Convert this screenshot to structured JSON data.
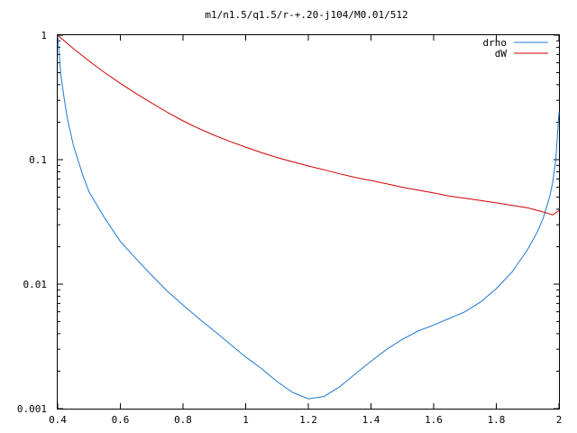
{
  "chart_data": {
    "type": "line",
    "title": "m1/n1.5/q1.5/r-+.20-j104/M0.01/512",
    "xlabel": "",
    "ylabel": "",
    "xlim": [
      0.4,
      2.0
    ],
    "ylim": [
      0.001,
      1
    ],
    "yscale": "log",
    "grid": false,
    "legend_position": "top-right",
    "x_ticks": [
      {
        "value": 0.4,
        "label": "0.4"
      },
      {
        "value": 0.6,
        "label": "0.6"
      },
      {
        "value": 0.8,
        "label": "0.8"
      },
      {
        "value": 1.0,
        "label": "1"
      },
      {
        "value": 1.2,
        "label": "1.2"
      },
      {
        "value": 1.4,
        "label": "1.4"
      },
      {
        "value": 1.6,
        "label": "1.6"
      },
      {
        "value": 1.8,
        "label": "1.8"
      },
      {
        "value": 2.0,
        "label": "2"
      }
    ],
    "y_ticks": [
      {
        "value": 1,
        "label": "1"
      },
      {
        "value": 0.1,
        "label": "0.1"
      },
      {
        "value": 0.01,
        "label": "0.01"
      },
      {
        "value": 0.001,
        "label": "0.001"
      }
    ],
    "series": [
      {
        "name": "drho",
        "color": "#1f77d2",
        "x": [
          0.4,
          0.41,
          0.42,
          0.43,
          0.45,
          0.48,
          0.5,
          0.55,
          0.6,
          0.65,
          0.7,
          0.75,
          0.8,
          0.85,
          0.9,
          0.95,
          1.0,
          1.05,
          1.1,
          1.15,
          1.2,
          1.25,
          1.3,
          1.35,
          1.4,
          1.45,
          1.5,
          1.55,
          1.6,
          1.65,
          1.7,
          1.75,
          1.8,
          1.85,
          1.9,
          1.93,
          1.95,
          1.97,
          1.98,
          1.99,
          2.0
        ],
        "y": [
          1.0,
          0.48,
          0.32,
          0.22,
          0.13,
          0.075,
          0.055,
          0.034,
          0.022,
          0.016,
          0.0118,
          0.0088,
          0.0068,
          0.0053,
          0.0042,
          0.0033,
          0.0026,
          0.0021,
          0.00165,
          0.00135,
          0.0012,
          0.00125,
          0.0015,
          0.0019,
          0.0024,
          0.003,
          0.0036,
          0.0042,
          0.0047,
          0.0053,
          0.006,
          0.0072,
          0.0092,
          0.0125,
          0.019,
          0.026,
          0.034,
          0.05,
          0.066,
          0.1,
          0.24
        ]
      },
      {
        "name": "dW",
        "color": "#d00000",
        "x": [
          0.4,
          0.45,
          0.5,
          0.55,
          0.6,
          0.65,
          0.7,
          0.75,
          0.8,
          0.85,
          0.9,
          0.95,
          1.0,
          1.05,
          1.1,
          1.15,
          1.2,
          1.25,
          1.3,
          1.35,
          1.4,
          1.45,
          1.5,
          1.55,
          1.6,
          1.65,
          1.7,
          1.75,
          1.8,
          1.85,
          1.9,
          1.95,
          1.98,
          2.0
        ],
        "y": [
          1.0,
          0.78,
          0.62,
          0.5,
          0.41,
          0.34,
          0.285,
          0.24,
          0.205,
          0.178,
          0.157,
          0.14,
          0.126,
          0.114,
          0.104,
          0.096,
          0.089,
          0.083,
          0.077,
          0.072,
          0.068,
          0.064,
          0.06,
          0.057,
          0.054,
          0.051,
          0.049,
          0.047,
          0.045,
          0.043,
          0.041,
          0.038,
          0.036,
          0.039
        ]
      }
    ]
  }
}
